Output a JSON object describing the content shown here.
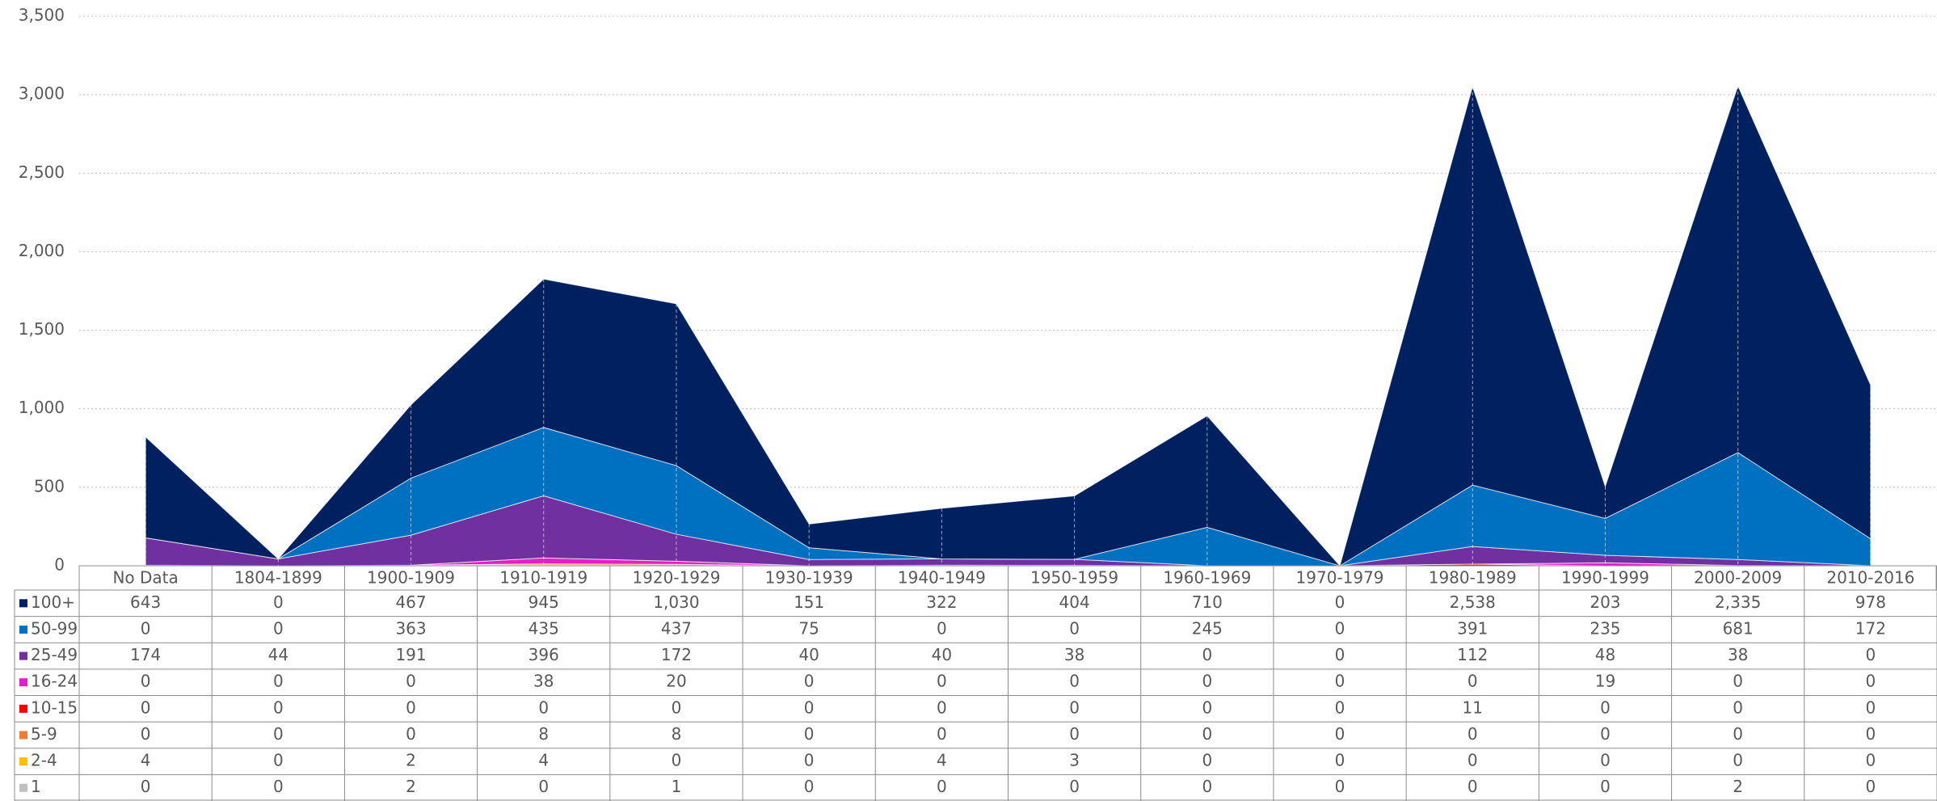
{
  "chart_data": {
    "type": "stacked_area",
    "categories": [
      "No Data",
      "1804-1899",
      "1900-1909",
      "1910-1919",
      "1920-1929",
      "1930-1939",
      "1940-1949",
      "1950-1959",
      "1960-1969",
      "1970-1979",
      "1980-1989",
      "1990-1999",
      "2000-2009",
      "2010-2016"
    ],
    "series": [
      {
        "name": "100+",
        "color": "#002060",
        "values": [
          643,
          0,
          467,
          945,
          1030,
          151,
          322,
          404,
          710,
          0,
          2538,
          203,
          2335,
          978
        ],
        "value_labels": [
          "643",
          "0",
          "467",
          "945",
          "1,030",
          "151",
          "322",
          "404",
          "710",
          "0",
          "2,538",
          "203",
          "2,335",
          "978"
        ]
      },
      {
        "name": "50-99",
        "color": "#0070c0",
        "values": [
          0,
          0,
          363,
          435,
          437,
          75,
          0,
          0,
          245,
          0,
          391,
          235,
          681,
          172
        ]
      },
      {
        "name": "25-49",
        "color": "#7030a0",
        "values": [
          174,
          44,
          191,
          396,
          172,
          40,
          40,
          38,
          0,
          0,
          112,
          48,
          38,
          0
        ]
      },
      {
        "name": "16-24",
        "color": "#e61ec8",
        "values": [
          0,
          0,
          0,
          38,
          20,
          0,
          0,
          0,
          0,
          0,
          0,
          19,
          0,
          0
        ]
      },
      {
        "name": "10-15",
        "color": "#ff0000",
        "values": [
          0,
          0,
          0,
          0,
          0,
          0,
          0,
          0,
          0,
          0,
          11,
          0,
          0,
          0
        ]
      },
      {
        "name": "5-9",
        "color": "#ed7d31",
        "values": [
          0,
          0,
          0,
          8,
          8,
          0,
          0,
          0,
          0,
          0,
          0,
          0,
          0,
          0
        ]
      },
      {
        "name": "2-4",
        "color": "#ffc000",
        "values": [
          4,
          0,
          2,
          4,
          0,
          0,
          4,
          3,
          0,
          0,
          0,
          0,
          0,
          0
        ]
      },
      {
        "name": "1",
        "color": "#bfbfbf",
        "values": [
          0,
          0,
          2,
          0,
          1,
          0,
          0,
          0,
          0,
          0,
          0,
          0,
          2,
          0
        ]
      }
    ],
    "ylim": [
      0,
      3500
    ],
    "yticks": [
      0,
      500,
      {
        "value": 1000,
        "label": "1,000"
      },
      {
        "value": 1500,
        "label": "1,500"
      },
      {
        "value": 2000,
        "label": "2,000"
      },
      {
        "value": 2500,
        "label": "2,500"
      },
      {
        "value": 3000,
        "label": "3,000"
      },
      {
        "value": 3500,
        "label": "3,500"
      }
    ],
    "grid": true
  }
}
